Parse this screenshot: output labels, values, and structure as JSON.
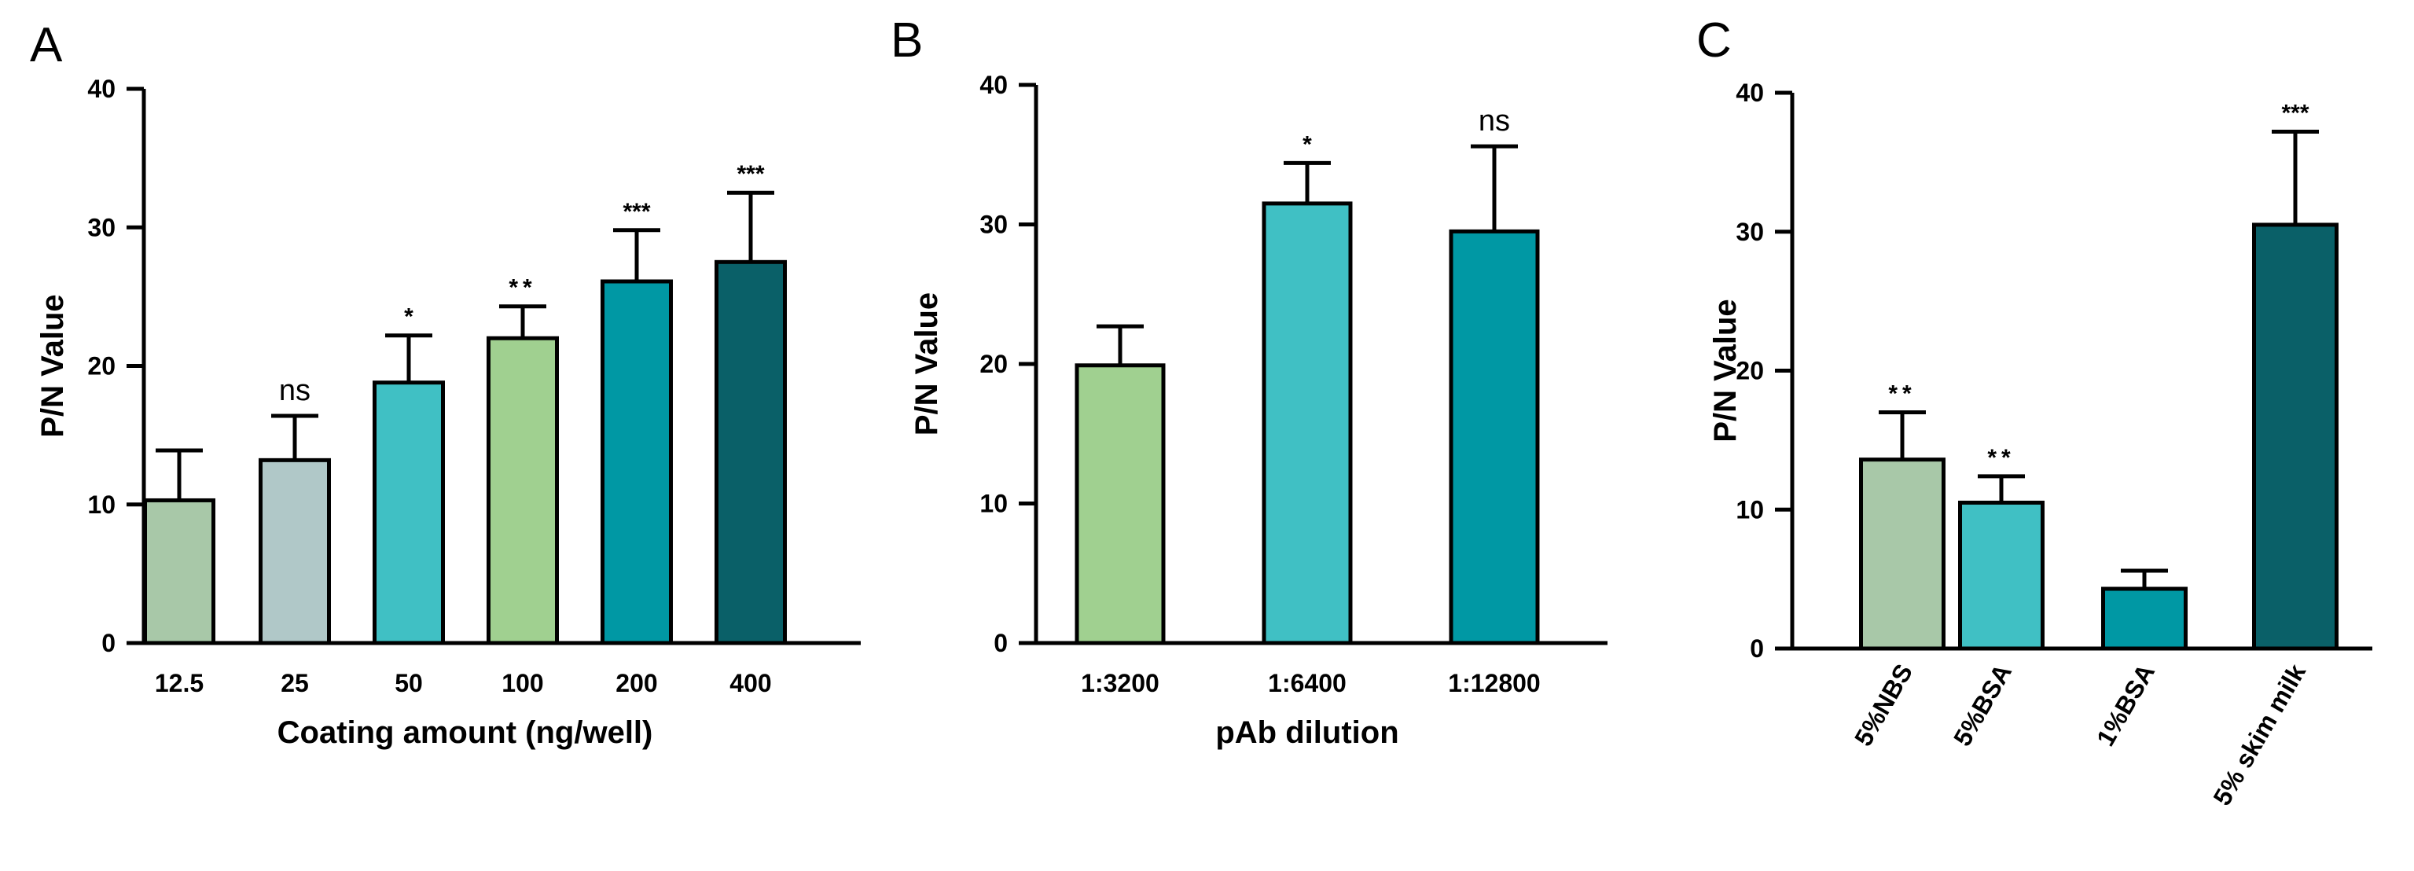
{
  "chart_data": [
    {
      "panel": "A",
      "type": "bar",
      "title": "",
      "xlabel": "Coating amount (ng/well)",
      "ylabel": "P/N Value",
      "ylim": [
        0,
        40
      ],
      "yticks": [
        "0",
        "10",
        "20",
        "30",
        "40"
      ],
      "categories": [
        "12.5",
        "25",
        "50",
        "100",
        "200",
        "400"
      ],
      "values": [
        10.3,
        13.2,
        18.8,
        22.0,
        26.1,
        27.5
      ],
      "errors": [
        3.6,
        3.2,
        3.4,
        2.3,
        3.7,
        5.0
      ],
      "significance": [
        "",
        "ns",
        "*",
        "**",
        "***",
        "***"
      ],
      "colors": [
        "#a8c8a8",
        "#b0c8c8",
        "#40c0c4",
        "#a0d090",
        "#0098a4",
        "#0a6068"
      ],
      "rotate_ticks": false
    },
    {
      "panel": "B",
      "type": "bar",
      "title": "",
      "xlabel": "pAb dilution",
      "ylabel": "P/N Value",
      "ylim": [
        0,
        40
      ],
      "yticks": [
        "0",
        "10",
        "20",
        "30",
        "40"
      ],
      "categories": [
        "1:3200",
        "1:6400",
        "1:12800"
      ],
      "values": [
        19.9,
        31.5,
        29.5
      ],
      "errors": [
        2.8,
        2.9,
        6.1
      ],
      "significance": [
        "",
        "*",
        "ns"
      ],
      "colors": [
        "#a0d090",
        "#40c0c4",
        "#0098a4"
      ],
      "rotate_ticks": false
    },
    {
      "panel": "C",
      "type": "bar",
      "title": "",
      "xlabel": "",
      "ylabel": "P/N Value",
      "ylim": [
        0,
        40
      ],
      "yticks": [
        "0",
        "10",
        "20",
        "30",
        "40"
      ],
      "categories": [
        "5%NBS",
        "5%BSA",
        "1%BSA",
        "5% skim milk"
      ],
      "values": [
        13.6,
        10.5,
        4.3,
        30.5
      ],
      "errors": [
        3.4,
        1.9,
        1.3,
        6.7
      ],
      "significance": [
        "**",
        "**",
        "",
        "***"
      ],
      "colors": [
        "#a8c8a8",
        "#40c0c4",
        "#0098a4",
        "#0a6068"
      ],
      "rotate_ticks": true
    }
  ]
}
